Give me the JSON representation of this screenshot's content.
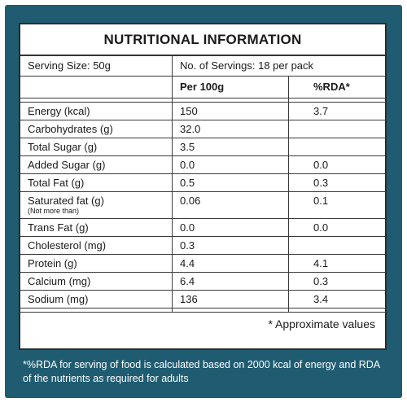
{
  "title": "NUTRITIONAL INFORMATION",
  "serving_size": "Serving Size: 50g",
  "servings": "No. of Servings: 18 per pack",
  "col_per100g": "Per 100g",
  "col_rda": "%RDA*",
  "rows": [
    {
      "name": "Energy (kcal)",
      "per100g": "150",
      "rda": "3.7"
    },
    {
      "name": "Carbohydrates (g)",
      "per100g": "32.0",
      "rda": ""
    },
    {
      "name": "Total Sugar (g)",
      "per100g": "3.5",
      "rda": ""
    },
    {
      "name": "Added Sugar (g)",
      "per100g": "0.0",
      "rda": "0.0"
    },
    {
      "name": "Total Fat (g)",
      "per100g": "0.5",
      "rda": "0.3"
    },
    {
      "name": "Saturated fat (g)",
      "note": "(Not more than)",
      "per100g": "0.06",
      "rda": "0.1"
    },
    {
      "name": "Trans Fat (g)",
      "per100g": "0.0",
      "rda": "0.0"
    },
    {
      "name": "Cholesterol (mg)",
      "per100g": "0.3",
      "rda": ""
    },
    {
      "name": "Protein (g)",
      "per100g": "4.4",
      "rda": "4.1"
    },
    {
      "name": "Calcium (mg)",
      "per100g": "6.4",
      "rda": "0.3"
    },
    {
      "name": "Sodium (mg)",
      "per100g": "136",
      "rda": "3.4"
    }
  ],
  "approx_note": "* Approximate values",
  "footnote": "*%RDA  for serving of food is calculated based on 2000 kcal of energy and RDA of the nutrients as required for adults",
  "colors": {
    "frame": "#1f5c72",
    "panel": "#ffffff",
    "text": "#1a1a1a"
  }
}
